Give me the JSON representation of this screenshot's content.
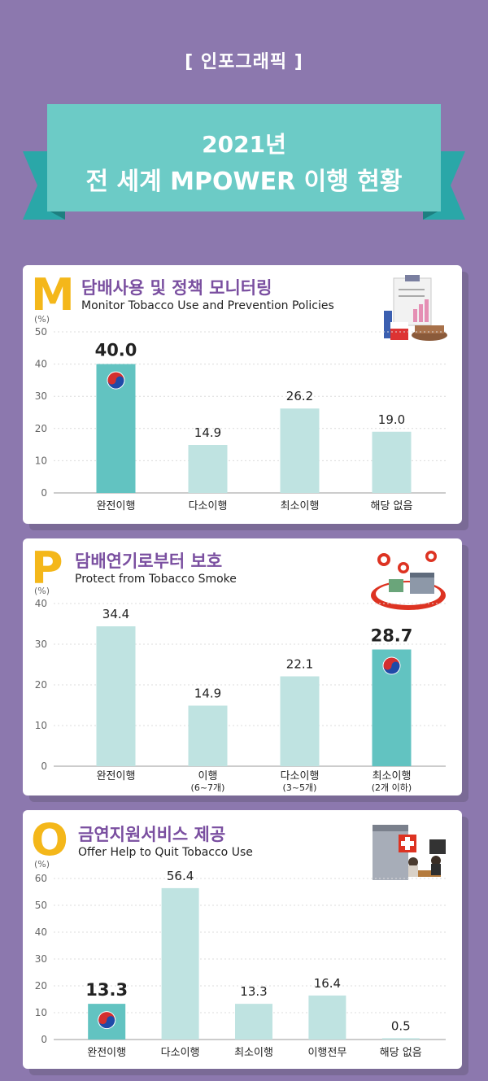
{
  "header": {
    "tag": "[ 인포그래픽 ]",
    "title_line1": "2021년",
    "title_line2": "전 세계 MPOWER 이행 현황"
  },
  "colors": {
    "background": "#8c78ae",
    "ribbon": "#6ccbc6",
    "ribbon_dark": "#2aa7a8",
    "bar_highlight": "#62c3c1",
    "bar_normal": "#bfe3e1",
    "letter": "#f4b71a",
    "title": "#7a4fa0"
  },
  "chart_data": [
    {
      "type": "bar",
      "letter": "M",
      "title": "담배사용 및 정책 모니터링",
      "subtitle": "Monitor Tobacco Use and Prevention Policies",
      "unit": "(%)",
      "categories": [
        "완전이행",
        "다소이행",
        "최소이행",
        "해당 없음"
      ],
      "sublabels": [
        "",
        "",
        "",
        ""
      ],
      "values": [
        40.0,
        14.9,
        26.2,
        19.0
      ],
      "value_labels": [
        "40.0",
        "14.9",
        "26.2",
        "19.0"
      ],
      "highlight_index": 0,
      "ylim": [
        0,
        50
      ],
      "yticks": [
        0,
        10,
        20,
        30,
        40,
        50
      ],
      "yticks_labels": [
        "0",
        "10",
        "20",
        "30",
        "40",
        "50"
      ],
      "grid": true
    },
    {
      "type": "bar",
      "letter": "P",
      "title": "담배연기로부터 보호",
      "subtitle": "Protect from Tobacco Smoke",
      "unit": "(%)",
      "categories": [
        "완전이행",
        "이행",
        "다소이행",
        "최소이행"
      ],
      "sublabels": [
        "",
        "(6~7개)",
        "(3~5개)",
        "(2개 이하)"
      ],
      "values": [
        34.4,
        14.9,
        22.1,
        28.7
      ],
      "value_labels": [
        "34.4",
        "14.9",
        "22.1",
        "28.7"
      ],
      "highlight_index": 3,
      "ylim": [
        0,
        40
      ],
      "yticks": [
        0,
        10,
        20,
        30,
        40
      ],
      "yticks_labels": [
        "0",
        "10",
        "20",
        "30",
        "40"
      ],
      "grid": true
    },
    {
      "type": "bar",
      "letter": "O",
      "title": "금연지원서비스 제공",
      "subtitle": "Offer Help to Quit Tobacco Use",
      "unit": "(%)",
      "categories": [
        "완전이행",
        "다소이행",
        "최소이행",
        "이행전무",
        "해당 없음"
      ],
      "sublabels": [
        "",
        "",
        "",
        "",
        ""
      ],
      "values": [
        13.3,
        56.4,
        13.3,
        16.4,
        0.5
      ],
      "value_labels": [
        "13.3",
        "56.4",
        "13.3",
        "16.4",
        "0.5"
      ],
      "highlight_index": 0,
      "ylim": [
        0,
        60
      ],
      "yticks": [
        0,
        10,
        20,
        30,
        40,
        50,
        60
      ],
      "yticks_labels": [
        "0",
        "10",
        "20",
        "30",
        "40",
        "50",
        "60"
      ],
      "grid": true
    }
  ]
}
